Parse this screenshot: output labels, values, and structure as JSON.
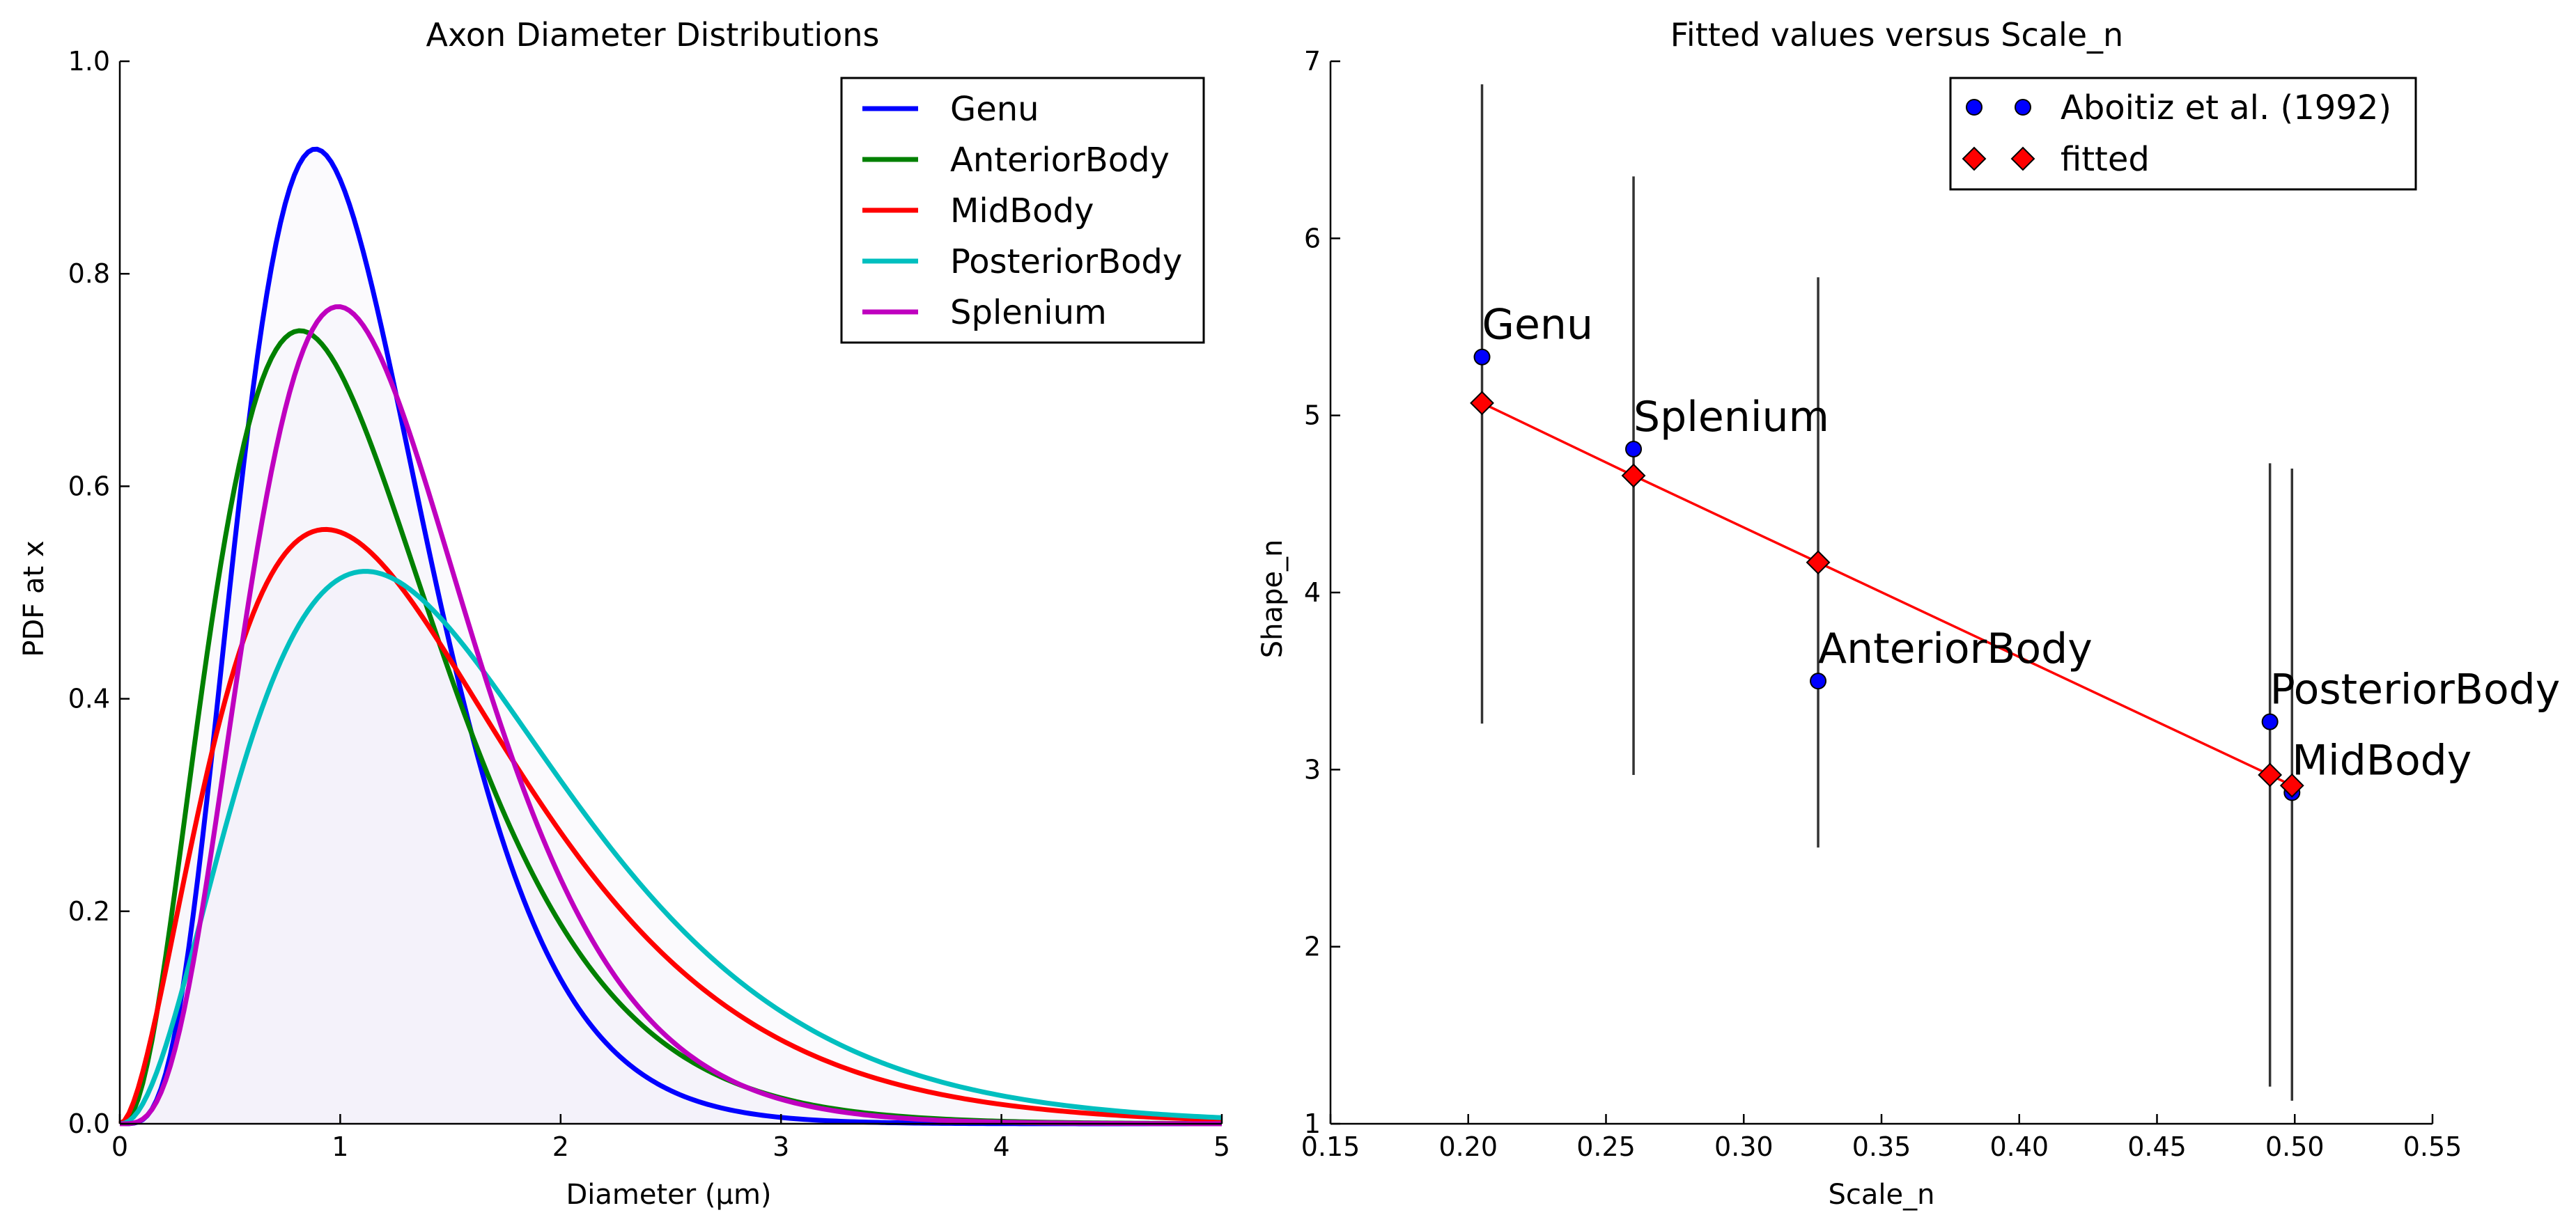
{
  "chart_data": [
    {
      "type": "line",
      "title": "Axon Diameter Distributions",
      "xlabel": "Diameter (μm)",
      "ylabel": "PDF at x",
      "xlim": [
        0,
        5
      ],
      "ylim": [
        0,
        1.0
      ],
      "xticks": [
        "0",
        "1",
        "2",
        "3",
        "4",
        "5"
      ],
      "yticks": [
        "0.0",
        "0.2",
        "0.4",
        "0.6",
        "0.8",
        "1.0"
      ],
      "grid": false,
      "legend_position": "top-right",
      "series": [
        {
          "name": "Genu",
          "color": "#0000ff",
          "shape": 5.33,
          "scale": 0.205
        },
        {
          "name": "AnteriorBody",
          "color": "#008000",
          "shape": 3.5,
          "scale": 0.327
        },
        {
          "name": "MidBody",
          "color": "#ff0000",
          "shape": 2.87,
          "scale": 0.499
        },
        {
          "name": "PosteriorBody",
          "color": "#00bfbf",
          "shape": 3.27,
          "scale": 0.491
        },
        {
          "name": "Splenium",
          "color": "#bf00bf",
          "shape": 4.81,
          "scale": 0.26
        }
      ],
      "fill_color": "#f3f0f8"
    },
    {
      "type": "scatter",
      "title": "Fitted values versus Scale_n",
      "xlabel": "Scale_n",
      "ylabel": "Shape_n",
      "xlim": [
        0.15,
        0.55
      ],
      "ylim": [
        1,
        7
      ],
      "xticks": [
        "0.15",
        "0.20",
        "0.25",
        "0.30",
        "0.35",
        "0.40",
        "0.45",
        "0.50",
        "0.55"
      ],
      "yticks": [
        "1",
        "2",
        "3",
        "4",
        "5",
        "6",
        "7"
      ],
      "grid": false,
      "legend_position": "top-right",
      "series": [
        {
          "name": "Aboitiz et al. (1992)",
          "color": "#0000ff",
          "marker": "circle",
          "points": [
            {
              "label": "Genu",
              "x": 0.205,
              "y": 5.33,
              "err_low": 3.26,
              "err_high": 6.87
            },
            {
              "label": "Splenium",
              "x": 0.26,
              "y": 4.81,
              "err_low": 2.97,
              "err_high": 6.35
            },
            {
              "label": "AnteriorBody",
              "x": 0.327,
              "y": 3.5,
              "err_low": 2.56,
              "err_high": 5.78
            },
            {
              "label": "PosteriorBody",
              "x": 0.491,
              "y": 3.27,
              "err_low": 1.21,
              "err_high": 4.73
            },
            {
              "label": "MidBody",
              "x": 0.499,
              "y": 2.87,
              "err_low": 1.13,
              "err_high": 4.7
            }
          ]
        },
        {
          "name": "fitted",
          "color": "#ff0000",
          "marker": "diamond",
          "line": true,
          "points": [
            {
              "x": 0.205,
              "y": 5.07
            },
            {
              "x": 0.26,
              "y": 4.66
            },
            {
              "x": 0.327,
              "y": 4.17
            },
            {
              "x": 0.491,
              "y": 2.97
            },
            {
              "x": 0.499,
              "y": 2.91
            }
          ]
        }
      ]
    }
  ]
}
